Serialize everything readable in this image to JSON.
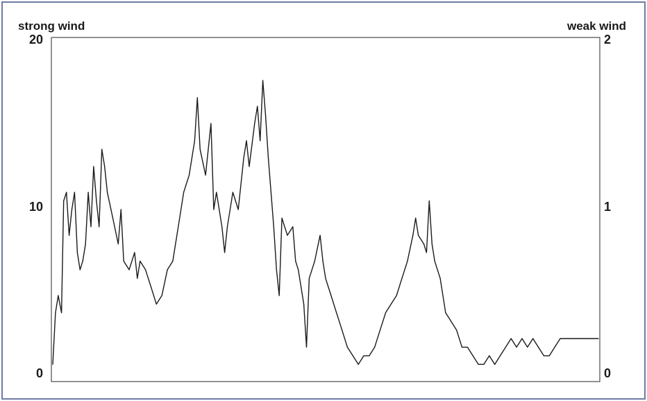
{
  "chart_data": {
    "type": "line",
    "left_axis": {
      "label": "strong wind",
      "ticks": [
        "20",
        "10",
        "0"
      ],
      "ylim": [
        0,
        20
      ]
    },
    "right_axis": {
      "label": "weak wind",
      "ticks": [
        "2",
        "1",
        "0"
      ],
      "ylim": [
        0,
        2
      ]
    },
    "xlim": [
      0,
      100
    ],
    "grid": false,
    "line_color": "#1a1a1a",
    "series": [
      {
        "values": [
          [
            0,
            1
          ],
          [
            0.5,
            4
          ],
          [
            1,
            5
          ],
          [
            1.6,
            4
          ],
          [
            2,
            10.5
          ],
          [
            2.5,
            11
          ],
          [
            3,
            8.5
          ],
          [
            3.5,
            10
          ],
          [
            4,
            11
          ],
          [
            4.5,
            7.5
          ],
          [
            5,
            6.5
          ],
          [
            5.5,
            7
          ],
          [
            6,
            8
          ],
          [
            6.5,
            11
          ],
          [
            7,
            9
          ],
          [
            7.5,
            12.5
          ],
          [
            8,
            10.5
          ],
          [
            8.5,
            9
          ],
          [
            9,
            13.5
          ],
          [
            9.5,
            12.5
          ],
          [
            10,
            11
          ],
          [
            11,
            9.5
          ],
          [
            12,
            8
          ],
          [
            12.5,
            10
          ],
          [
            13,
            7
          ],
          [
            14,
            6.5
          ],
          [
            15,
            7.5
          ],
          [
            15.5,
            6
          ],
          [
            16,
            7
          ],
          [
            17,
            6.5
          ],
          [
            18,
            5.5
          ],
          [
            19,
            4.5
          ],
          [
            20,
            5
          ],
          [
            21,
            6.5
          ],
          [
            22,
            7
          ],
          [
            23,
            9
          ],
          [
            24,
            11
          ],
          [
            25,
            12
          ],
          [
            26,
            14
          ],
          [
            26.5,
            16.5
          ],
          [
            27,
            13.5
          ],
          [
            28,
            12
          ],
          [
            29,
            15
          ],
          [
            29.5,
            10
          ],
          [
            30,
            11
          ],
          [
            31,
            9
          ],
          [
            31.5,
            7.5
          ],
          [
            32,
            9
          ],
          [
            33,
            11
          ],
          [
            34,
            10
          ],
          [
            35,
            13
          ],
          [
            35.5,
            14
          ],
          [
            36,
            12.5
          ],
          [
            37,
            15
          ],
          [
            37.5,
            16
          ],
          [
            38,
            14
          ],
          [
            38.5,
            17.5
          ],
          [
            39,
            15.5
          ],
          [
            39.5,
            13
          ],
          [
            40,
            11
          ],
          [
            40.5,
            9
          ],
          [
            41,
            6.5
          ],
          [
            41.5,
            5
          ],
          [
            42,
            9.5
          ],
          [
            43,
            8.5
          ],
          [
            44,
            9
          ],
          [
            44.5,
            7
          ],
          [
            45,
            6.5
          ],
          [
            46,
            4.5
          ],
          [
            46.5,
            2
          ],
          [
            47,
            6
          ],
          [
            48,
            7
          ],
          [
            49,
            8.5
          ],
          [
            49.5,
            7
          ],
          [
            50,
            6
          ],
          [
            51,
            5
          ],
          [
            52,
            4
          ],
          [
            53,
            3
          ],
          [
            54,
            2
          ],
          [
            55,
            1.5
          ],
          [
            56,
            1
          ],
          [
            57,
            1.5
          ],
          [
            58,
            1.5
          ],
          [
            59,
            2
          ],
          [
            60,
            3
          ],
          [
            61,
            4
          ],
          [
            62,
            4.5
          ],
          [
            63,
            5
          ],
          [
            64,
            6
          ],
          [
            65,
            7
          ],
          [
            66,
            8.5
          ],
          [
            66.5,
            9.5
          ],
          [
            67,
            8.5
          ],
          [
            68,
            8
          ],
          [
            68.5,
            7.5
          ],
          [
            69,
            10.5
          ],
          [
            69.5,
            8
          ],
          [
            70,
            7
          ],
          [
            71,
            6
          ],
          [
            72,
            4
          ],
          [
            73,
            3.5
          ],
          [
            74,
            3
          ],
          [
            75,
            2
          ],
          [
            76,
            2
          ],
          [
            77,
            1.5
          ],
          [
            78,
            1
          ],
          [
            79,
            1
          ],
          [
            80,
            1.5
          ],
          [
            81,
            1
          ],
          [
            82,
            1.5
          ],
          [
            83,
            2
          ],
          [
            84,
            2.5
          ],
          [
            85,
            2
          ],
          [
            86,
            2.5
          ],
          [
            87,
            2
          ],
          [
            88,
            2.5
          ],
          [
            89,
            2
          ],
          [
            90,
            1.5
          ],
          [
            91,
            1.5
          ],
          [
            92,
            2
          ],
          [
            93,
            2.5
          ],
          [
            94,
            2.5
          ],
          [
            95,
            2.5
          ],
          [
            96,
            2.5
          ],
          [
            97,
            2.5
          ],
          [
            98,
            2.5
          ],
          [
            99,
            2.5
          ],
          [
            100,
            2.5
          ]
        ]
      }
    ]
  }
}
